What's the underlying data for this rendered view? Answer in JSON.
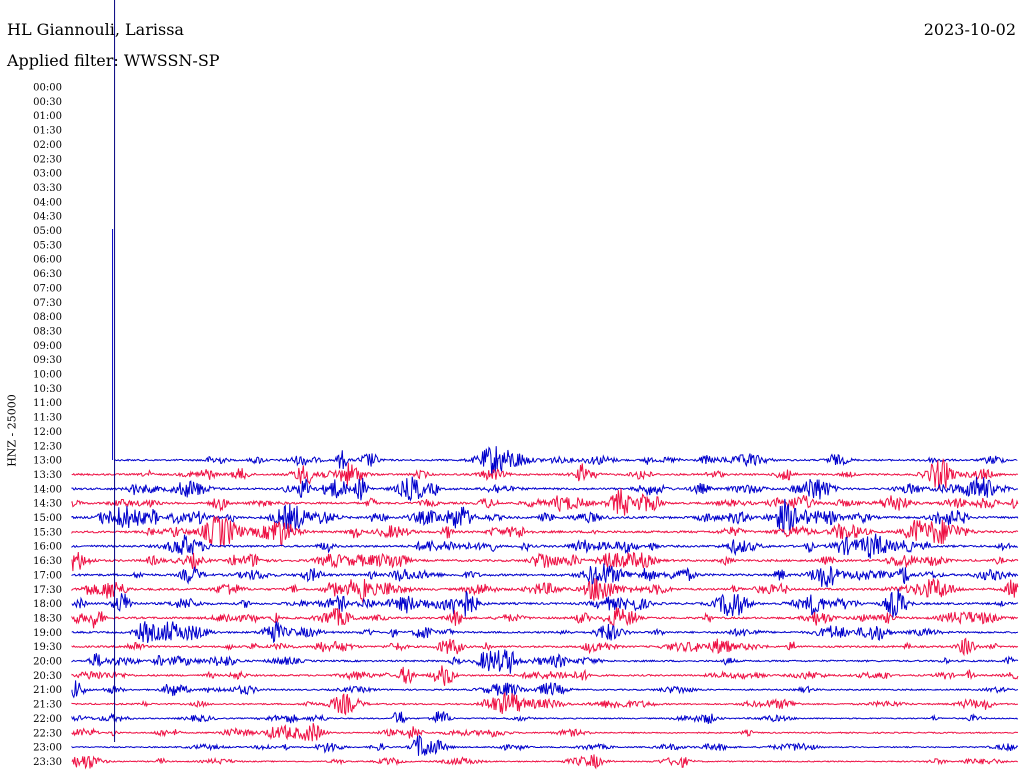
{
  "header": {
    "station": "HL Giannouli, Larissa",
    "date": "2023-10-02",
    "filter": "Applied filter: WWSSN-SP"
  },
  "chart_data": {
    "type": "line",
    "title": "HL Giannouli, Larissa",
    "subtitle": "Applied filter: WWSSN-SP",
    "date": "2023-10-02",
    "ylabel": "HNZ - 25000",
    "xlabel": "",
    "row_labels": [
      "00:00",
      "00:30",
      "01:00",
      "01:30",
      "02:00",
      "02:30",
      "03:00",
      "03:30",
      "04:00",
      "04:30",
      "05:00",
      "05:30",
      "06:00",
      "06:30",
      "07:00",
      "07:30",
      "08:00",
      "08:30",
      "09:00",
      "09:30",
      "10:00",
      "10:30",
      "11:00",
      "11:30",
      "12:00",
      "12:30",
      "13:00",
      "13:30",
      "14:00",
      "14:30",
      "15:00",
      "15:30",
      "16:00",
      "16:30",
      "17:00",
      "17:30",
      "18:00",
      "18:30",
      "19:00",
      "19:30",
      "20:00",
      "20:30",
      "21:00",
      "21:30",
      "22:00",
      "22:30",
      "23:00",
      "23:30"
    ],
    "first_data_row": "13:00",
    "trace_start_fraction": 0.045,
    "colors": {
      "odd_rows": "#0000cc",
      "even_rows": "#ee1144",
      "marker": "#000080"
    },
    "row_activity": [
      0,
      0,
      0,
      0,
      0,
      0,
      0,
      0,
      0,
      0,
      0,
      0,
      0,
      0,
      0,
      0,
      0,
      0,
      0,
      0,
      0,
      0,
      0,
      0,
      0,
      0,
      0.55,
      0.6,
      0.7,
      0.75,
      0.8,
      0.8,
      0.75,
      0.75,
      0.8,
      0.75,
      0.75,
      0.7,
      0.6,
      0.6,
      0.55,
      0.55,
      0.4,
      0.45,
      0.3,
      0.35,
      0.3,
      0.3
    ],
    "grid": false,
    "legend": "none"
  }
}
